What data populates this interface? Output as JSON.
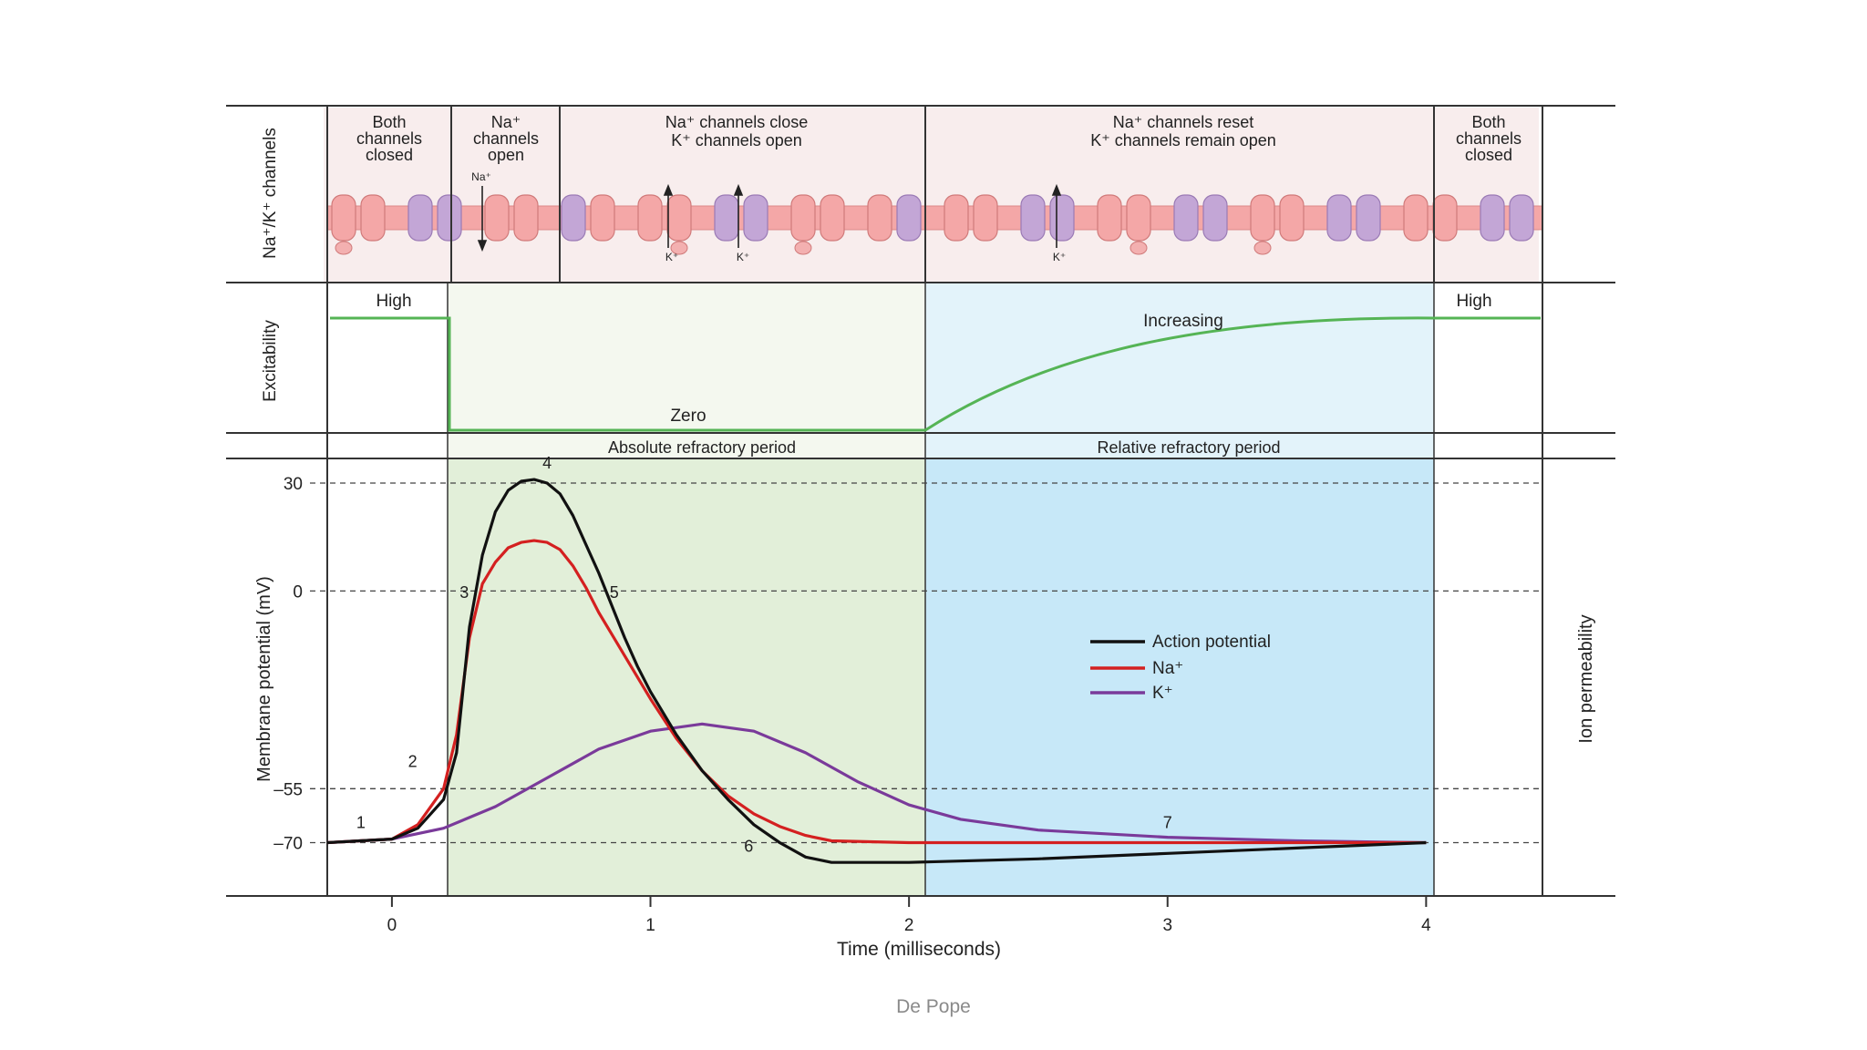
{
  "top_band": {
    "axis_label": "Na⁺/K⁺ channels",
    "phases": [
      [
        "Both",
        "channels",
        "closed"
      ],
      [
        "Na⁺",
        "channels",
        "open"
      ],
      [
        "Na⁺  channels close",
        "K⁺  channels open"
      ],
      [
        "Na⁺  channels reset",
        "K⁺  channels remain open"
      ],
      [
        "Both",
        "channels",
        "closed"
      ]
    ],
    "ion_labels": {
      "na": "Na⁺",
      "k": "K⁺"
    }
  },
  "excitability": {
    "axis_label": "Excitability",
    "high_left": "High",
    "zero": "Zero",
    "increasing": "Increasing",
    "high_right": "High",
    "absolute": "Absolute refractory period",
    "relative": "Relative refractory period"
  },
  "colors": {
    "absolute_fill": "#e2efd9",
    "relative_fill": "#c7e8f8",
    "excitability_line": "#55b455",
    "action_potential": "#111111",
    "na": "#d42020",
    "k": "#7a3a9a",
    "membrane_pink": "#f4a7a7",
    "channel_purple": "#c3a6d6"
  },
  "chart_data": {
    "type": "line",
    "xlabel": "Time (milliseconds)",
    "ylabel": "Membrane potential (mV)",
    "right_label": "Ion permeability",
    "x_ticks": [
      "0",
      "1",
      "2",
      "3",
      "4"
    ],
    "y_ticks": [
      "30",
      "0",
      "–55",
      "–70"
    ],
    "xlim": [
      -0.25,
      4.45
    ],
    "absolute_refractory_ms": [
      0.22,
      2.05
    ],
    "relative_refractory_ms": [
      2.05,
      4.0
    ],
    "series": [
      {
        "name": "Action potential",
        "color": "#111111",
        "x": [
          -0.25,
          0.0,
          0.1,
          0.2,
          0.25,
          0.3,
          0.35,
          0.4,
          0.45,
          0.5,
          0.55,
          0.6,
          0.65,
          0.7,
          0.75,
          0.8,
          0.85,
          0.9,
          0.95,
          1.0,
          1.1,
          1.2,
          1.3,
          1.4,
          1.5,
          1.6,
          1.7,
          2.0,
          2.5,
          3.0,
          3.5,
          4.0
        ],
        "y": [
          -70,
          -69,
          -66,
          -58,
          -45,
          -10,
          10,
          22,
          28,
          30.5,
          31,
          30,
          27,
          21,
          13,
          5,
          -4,
          -13,
          -21,
          -28,
          -40,
          -50,
          -58,
          -65,
          -70,
          -74,
          -75.5,
          -75.5,
          -74.5,
          -73,
          -71.5,
          -70
        ]
      },
      {
        "name": "Na⁺",
        "color": "#d42020",
        "x": [
          -0.25,
          0.0,
          0.1,
          0.2,
          0.25,
          0.3,
          0.35,
          0.4,
          0.45,
          0.5,
          0.55,
          0.6,
          0.65,
          0.7,
          0.75,
          0.8,
          0.85,
          0.9,
          1.0,
          1.1,
          1.2,
          1.3,
          1.4,
          1.5,
          1.6,
          1.7,
          2.0,
          3.0,
          4.0
        ],
        "y": [
          -70,
          -69,
          -65,
          -55,
          -40,
          -13,
          2,
          8,
          12,
          13.5,
          14,
          13.5,
          11.5,
          7,
          1,
          -6,
          -12,
          -18,
          -30,
          -41,
          -50,
          -57,
          -62,
          -65.5,
          -68,
          -69.5,
          -70,
          -70,
          -70
        ]
      },
      {
        "name": "K⁺",
        "color": "#7a3a9a",
        "x": [
          -0.25,
          0.0,
          0.2,
          0.4,
          0.6,
          0.8,
          1.0,
          1.2,
          1.4,
          1.6,
          1.8,
          2.0,
          2.2,
          2.5,
          3.0,
          3.5,
          4.0
        ],
        "y": [
          -70,
          -69,
          -66,
          -60,
          -52,
          -44,
          -39,
          -37,
          -39,
          -45,
          -53,
          -59.5,
          -63.5,
          -66.5,
          -68.5,
          -69.5,
          -70
        ]
      }
    ],
    "point_labels": [
      "1",
      "2",
      "3",
      "4",
      "5",
      "6",
      "7"
    ],
    "legend": [
      "Action potential",
      "Na⁺",
      "K⁺"
    ]
  },
  "footer": {
    "credit": "De Pope"
  }
}
